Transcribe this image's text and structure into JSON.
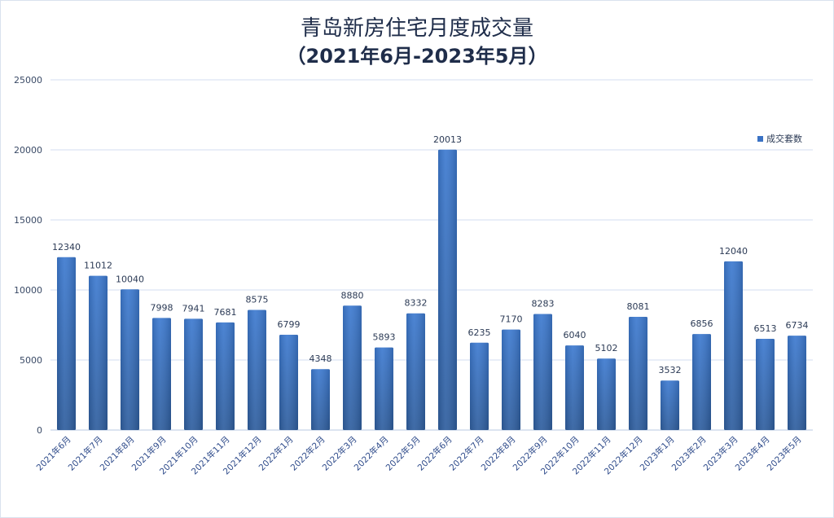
{
  "chart_data": {
    "type": "bar",
    "title": "青岛新房住宅月度成交量",
    "subtitle": "（2021年6月-2023年5月）",
    "categories": [
      "2021年6月",
      "2021年7月",
      "2021年8月",
      "2021年9月",
      "2021年10月",
      "2021年11月",
      "2021年12月",
      "2022年1月",
      "2022年2月",
      "2022年3月",
      "2022年4月",
      "2022年5月",
      "2022年6月",
      "2022年7月",
      "2022年8月",
      "2022年9月",
      "2022年10月",
      "2022年11月",
      "2022年12月",
      "2023年1月",
      "2023年2月",
      "2023年3月",
      "2023年4月",
      "2023年5月"
    ],
    "series": [
      {
        "name": "成交套数",
        "values": [
          12340,
          11012,
          10040,
          7998,
          7941,
          7681,
          8575,
          6799,
          4348,
          8880,
          5893,
          8332,
          20013,
          6235,
          7170,
          8283,
          6040,
          5102,
          8081,
          3532,
          6856,
          12040,
          6513,
          6734
        ],
        "color": "#3a72c4"
      }
    ],
    "ylim": [
      0,
      25000
    ],
    "yticks": [
      0,
      5000,
      10000,
      15000,
      20000,
      25000
    ],
    "grid": true,
    "legend_position": "right"
  }
}
